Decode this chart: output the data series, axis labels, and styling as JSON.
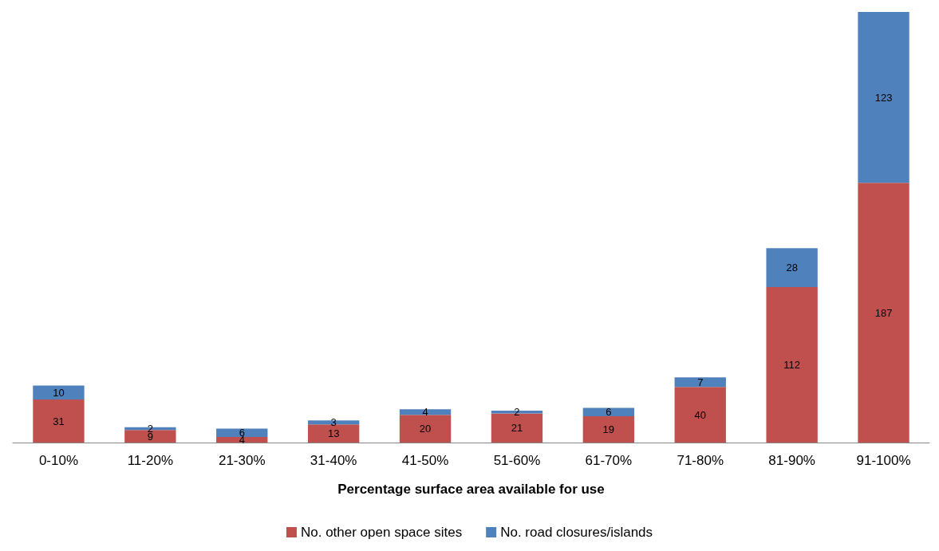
{
  "chart_data": {
    "type": "bar",
    "stacked": true,
    "xlabel": "Percentage surface area available for use",
    "categories": [
      "0-10%",
      "11-20%",
      "21-30%",
      "31-40%",
      "41-50%",
      "51-60%",
      "61-70%",
      "71-80%",
      "81-90%",
      "91-100%"
    ],
    "series": [
      {
        "name": "No. other open space sites",
        "color": "#c0504d",
        "values": [
          31,
          9,
          4,
          13,
          20,
          21,
          19,
          40,
          112,
          187
        ]
      },
      {
        "name": "No. road closures/islands",
        "color": "#4f81bd",
        "values": [
          10,
          2,
          6,
          3,
          4,
          2,
          6,
          7,
          28,
          123
        ]
      }
    ],
    "data_labels": true,
    "legend": "bottom"
  }
}
